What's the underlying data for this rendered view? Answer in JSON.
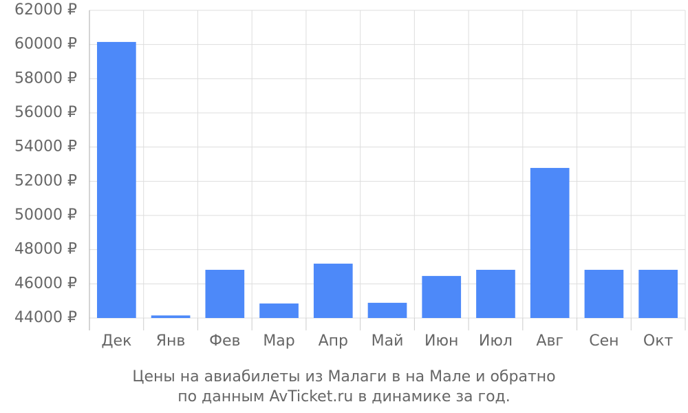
{
  "chart_data": {
    "type": "bar",
    "title": "Цены на авиабилеты из Малаги в на Мале и обратно",
    "subtitle": "по данным AvTicket.ru в динамике за год.",
    "categories": [
      "Дек",
      "Янв",
      "Фев",
      "Мар",
      "Апр",
      "Май",
      "Июн",
      "Июл",
      "Авг",
      "Сен",
      "Окт"
    ],
    "values": [
      60150,
      44150,
      46820,
      44850,
      47180,
      44890,
      46460,
      46820,
      52780,
      46820,
      46820
    ],
    "color": "#4d89f9",
    "ylim": [
      44000,
      62000
    ],
    "yticks": [
      {
        "value": 44000,
        "label": "44000 ₽"
      },
      {
        "value": 46000,
        "label": "46000 ₽"
      },
      {
        "value": 48000,
        "label": "48000 ₽"
      },
      {
        "value": 50000,
        "label": "50000 ₽"
      },
      {
        "value": 52000,
        "label": "52000 ₽"
      },
      {
        "value": 54000,
        "label": "54000 ₽"
      },
      {
        "value": 56000,
        "label": "56000 ₽"
      },
      {
        "value": 58000,
        "label": "58000 ₽"
      },
      {
        "value": 60000,
        "label": "60000 ₽"
      },
      {
        "value": 62000,
        "label": "62000 ₽"
      }
    ],
    "grid": true
  }
}
